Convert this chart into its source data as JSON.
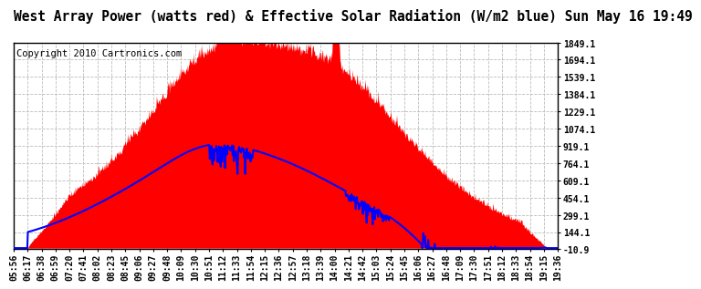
{
  "title": "West Array Power (watts red) & Effective Solar Radiation (W/m2 blue) Sun May 16 19:49",
  "copyright": "Copyright 2010 Cartronics.com",
  "yticks": [
    -10.9,
    144.1,
    299.1,
    454.1,
    609.1,
    764.1,
    919.1,
    1074.1,
    1229.1,
    1384.1,
    1539.1,
    1694.1,
    1849.1
  ],
  "ylim": [
    -10.9,
    1849.1
  ],
  "xtick_labels": [
    "05:56",
    "06:17",
    "06:38",
    "06:59",
    "07:20",
    "07:41",
    "08:02",
    "08:23",
    "08:45",
    "09:06",
    "09:27",
    "09:48",
    "10:09",
    "10:30",
    "10:51",
    "11:12",
    "11:33",
    "11:54",
    "12:15",
    "12:36",
    "12:57",
    "13:18",
    "13:39",
    "14:00",
    "14:21",
    "14:42",
    "15:03",
    "15:24",
    "15:45",
    "16:06",
    "16:27",
    "16:48",
    "17:09",
    "17:30",
    "17:51",
    "18:12",
    "18:33",
    "18:54",
    "19:15",
    "19:36"
  ],
  "red_color": "#FF0000",
  "blue_color": "#0000FF",
  "bg_color": "#FFFFFF",
  "grid_color": "#BBBBBB",
  "title_fontsize": 10.5,
  "copyright_fontsize": 7.5,
  "tick_fontsize": 7
}
